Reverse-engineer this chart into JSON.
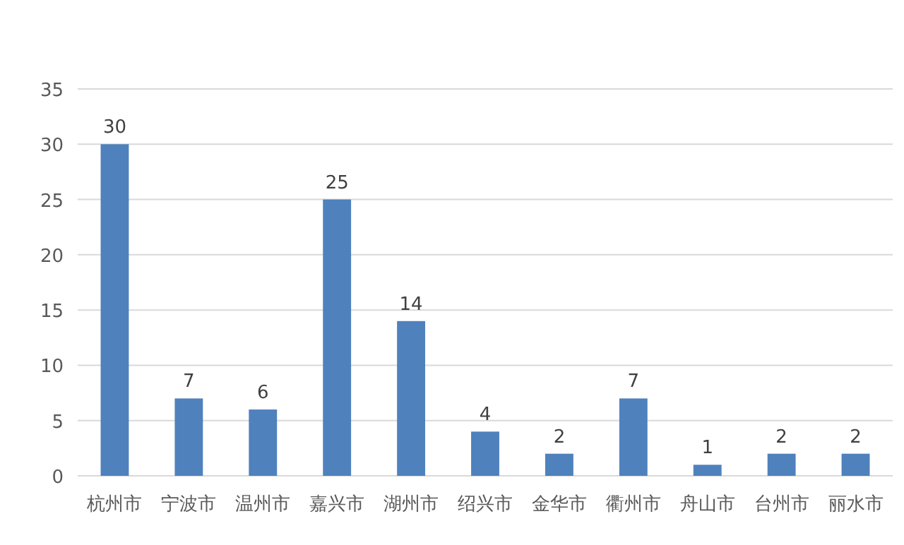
{
  "chart_data": {
    "type": "bar",
    "categories": [
      "杭州市",
      "宁波市",
      "温州市",
      "嘉兴市",
      "湖州市",
      "绍兴市",
      "金华市",
      "衢州市",
      "舟山市",
      "台州市",
      "丽水市"
    ],
    "values": [
      30,
      7,
      6,
      25,
      14,
      4,
      2,
      7,
      1,
      2,
      2
    ],
    "color": "#4f81bd",
    "ylim": [
      0,
      35
    ],
    "yticks": [
      0,
      5,
      10,
      15,
      20,
      25,
      30,
      35
    ],
    "grid": "y",
    "data_labels": true
  }
}
